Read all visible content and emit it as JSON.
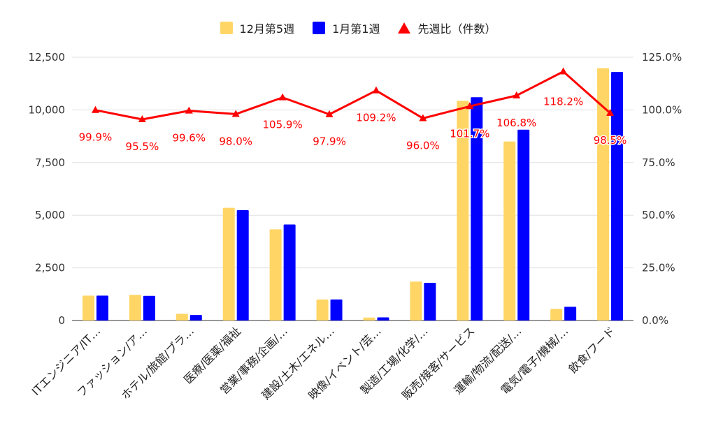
{
  "chart_data": {
    "type": "bar",
    "categories": [
      "ITエンジニア/IT…",
      "ファッション/ア…",
      "ホテル/旅館/ブラ…",
      "医療/医薬/福祉",
      "営業/事務/企画/…",
      "建設/土木/エネル…",
      "映像/イベント/芸…",
      "製造/工場/化学/…",
      "販売/接客/サービス",
      "運輸/物流/配送/…",
      "電気/電子/機械/…",
      "飲食/フード"
    ],
    "series": [
      {
        "name": "12月第5週",
        "axis": "left",
        "color": "#ffd666",
        "values": [
          1180,
          1220,
          320,
          5350,
          4330,
          1000,
          140,
          1850,
          10430,
          8500,
          550,
          11980
        ]
      },
      {
        "name": "1月第1週",
        "axis": "left",
        "color": "#0000ff",
        "values": [
          1180,
          1170,
          260,
          5240,
          4560,
          1000,
          150,
          1790,
          10600,
          9060,
          650,
          11800
        ]
      },
      {
        "name": "先週比（件数）",
        "axis": "right",
        "type": "line",
        "color": "#ff0000",
        "values": [
          99.9,
          95.5,
          99.6,
          98.0,
          105.9,
          97.9,
          109.2,
          96.0,
          101.7,
          106.8,
          118.2,
          98.5
        ],
        "labels": [
          "99.9%",
          "95.5%",
          "99.6%",
          "98.0%",
          "105.9%",
          "97.9%",
          "109.2%",
          "96.0%",
          "101.7%",
          "106.8%",
          "118.2%",
          "98.5%"
        ]
      }
    ],
    "left_axis": {
      "min": 0,
      "max": 12500,
      "ticks": [
        0,
        2500,
        5000,
        7500,
        10000,
        12500
      ],
      "tick_labels": [
        "0",
        "2,500",
        "5,000",
        "7,500",
        "10,000",
        "12,500"
      ]
    },
    "right_axis": {
      "min": 0,
      "max": 125,
      "ticks": [
        0,
        25,
        50,
        75,
        100,
        125
      ],
      "tick_labels": [
        "0.0%",
        "25.0%",
        "50.0%",
        "75.0%",
        "100.0%",
        "125.0%"
      ]
    },
    "legend_position": "top",
    "grid": true
  }
}
